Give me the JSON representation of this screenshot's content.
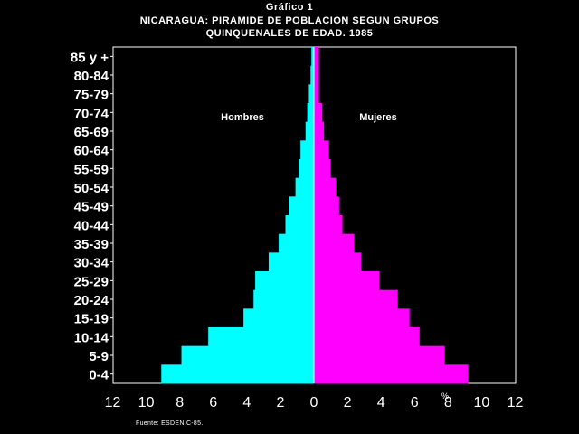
{
  "header": {
    "figure_label": "Gráfico 1",
    "title_line1": "NICARAGUA: PIRAMIDE DE POBLACION SEGUN GRUPOS",
    "title_line2": "QUINQUENALES DE EDAD. 1985"
  },
  "footer": {
    "source": "Fuente: ESDENIC-85."
  },
  "colors": {
    "hombres": "#00FFFF",
    "mujeres": "#FF00FF",
    "background": "#000000",
    "axis": "#FFFFFF"
  },
  "chart_data": {
    "type": "bar",
    "orientation": "horizontal-population-pyramid",
    "categories": [
      "0-4",
      "5-9",
      "10-14",
      "15-19",
      "20-24",
      "25-29",
      "30-34",
      "35-39",
      "40-44",
      "45-49",
      "50-54",
      "55-59",
      "60-64",
      "65-69",
      "70-74",
      "75-79",
      "80-84",
      "85 y +"
    ],
    "series": [
      {
        "name": "Hombres",
        "side": "left",
        "values": [
          9.1,
          7.9,
          6.3,
          4.2,
          3.6,
          3.5,
          2.7,
          2.1,
          1.7,
          1.5,
          1.1,
          0.9,
          0.8,
          0.5,
          0.4,
          0.3,
          0.2,
          0.15
        ]
      },
      {
        "name": "Mujeres",
        "side": "right",
        "values": [
          9.2,
          7.8,
          6.3,
          5.7,
          5.0,
          3.9,
          2.8,
          2.4,
          1.7,
          1.5,
          1.3,
          1.0,
          0.9,
          0.6,
          0.5,
          0.3,
          0.3,
          0.3
        ]
      }
    ],
    "xticks": [
      "12",
      "10",
      "8",
      "6",
      "4",
      "2",
      "0",
      "2",
      "4",
      "6",
      "8",
      "10",
      "12"
    ],
    "xtick_values": [
      -12,
      -10,
      -8,
      -6,
      -4,
      -2,
      0,
      2,
      4,
      6,
      8,
      10,
      12
    ],
    "xunit_label": "%",
    "xlim": [
      -12,
      12
    ],
    "grid": false,
    "legend": "inline labels above bars"
  }
}
